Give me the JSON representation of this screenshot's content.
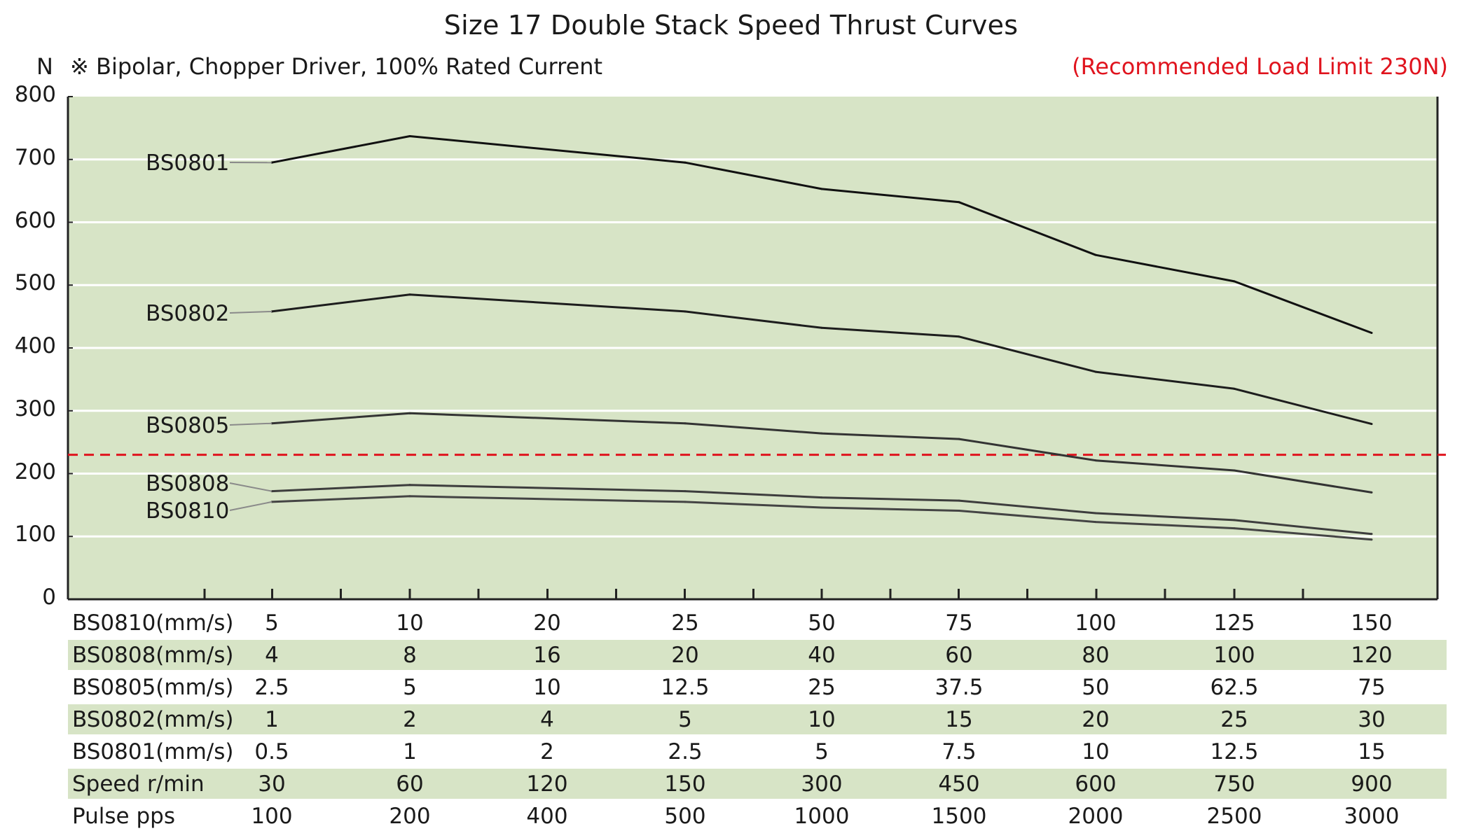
{
  "title": "Size 17 Double Stack Speed Thrust Curves",
  "y_unit": "N",
  "subtitle": "※ Bipolar, Chopper Driver, 100% Rated Current",
  "limit_note": "(Recommended Load Limit 230N)",
  "colors": {
    "plot_bg": "#d7e4c6",
    "limit_line": "#e0141e",
    "table_shade": "#d7e4c6"
  },
  "chart_data": {
    "type": "line",
    "ylabel": "N",
    "ylim": [
      0,
      800
    ],
    "yticks": [
      "0",
      "100",
      "200",
      "300",
      "400",
      "500",
      "600",
      "700",
      "800"
    ],
    "grid": true,
    "x_positions": 9,
    "reference_line": {
      "value": 230,
      "style": "dashed"
    },
    "series": [
      {
        "name": "BS0801",
        "values": [
          695,
          737,
          null,
          695,
          653,
          632,
          548,
          506,
          424
        ]
      },
      {
        "name": "BS0802",
        "values": [
          458,
          485,
          null,
          458,
          432,
          418,
          362,
          335,
          279
        ]
      },
      {
        "name": "BS0805",
        "values": [
          280,
          296,
          null,
          280,
          264,
          255,
          221,
          205,
          170
        ]
      },
      {
        "name": "BS0808",
        "values": [
          172,
          182,
          null,
          172,
          162,
          157,
          137,
          126,
          104
        ]
      },
      {
        "name": "BS0810",
        "values": [
          155,
          164,
          null,
          155,
          146,
          141,
          123,
          113,
          95
        ]
      }
    ]
  },
  "table": {
    "rows": [
      {
        "label": "BS0810(mm/s)",
        "values": [
          "5",
          "10",
          "20",
          "25",
          "50",
          "75",
          "100",
          "125",
          "150"
        ]
      },
      {
        "label": "BS0808(mm/s)",
        "values": [
          "4",
          "8",
          "16",
          "20",
          "40",
          "60",
          "80",
          "100",
          "120"
        ]
      },
      {
        "label": "BS0805(mm/s)",
        "values": [
          "2.5",
          "5",
          "10",
          "12.5",
          "25",
          "37.5",
          "50",
          "62.5",
          "75"
        ]
      },
      {
        "label": "BS0802(mm/s)",
        "values": [
          "1",
          "2",
          "4",
          "5",
          "10",
          "15",
          "20",
          "25",
          "30"
        ]
      },
      {
        "label": "BS0801(mm/s)",
        "values": [
          "0.5",
          "1",
          "2",
          "2.5",
          "5",
          "7.5",
          "10",
          "12.5",
          "15"
        ]
      },
      {
        "label": "Speed  r/min",
        "values": [
          "30",
          "60",
          "120",
          "150",
          "300",
          "450",
          "600",
          "750",
          "900"
        ]
      },
      {
        "label": "Pulse  pps",
        "values": [
          "100",
          "200",
          "400",
          "500",
          "1000",
          "1500",
          "2000",
          "2500",
          "3000"
        ]
      }
    ]
  }
}
